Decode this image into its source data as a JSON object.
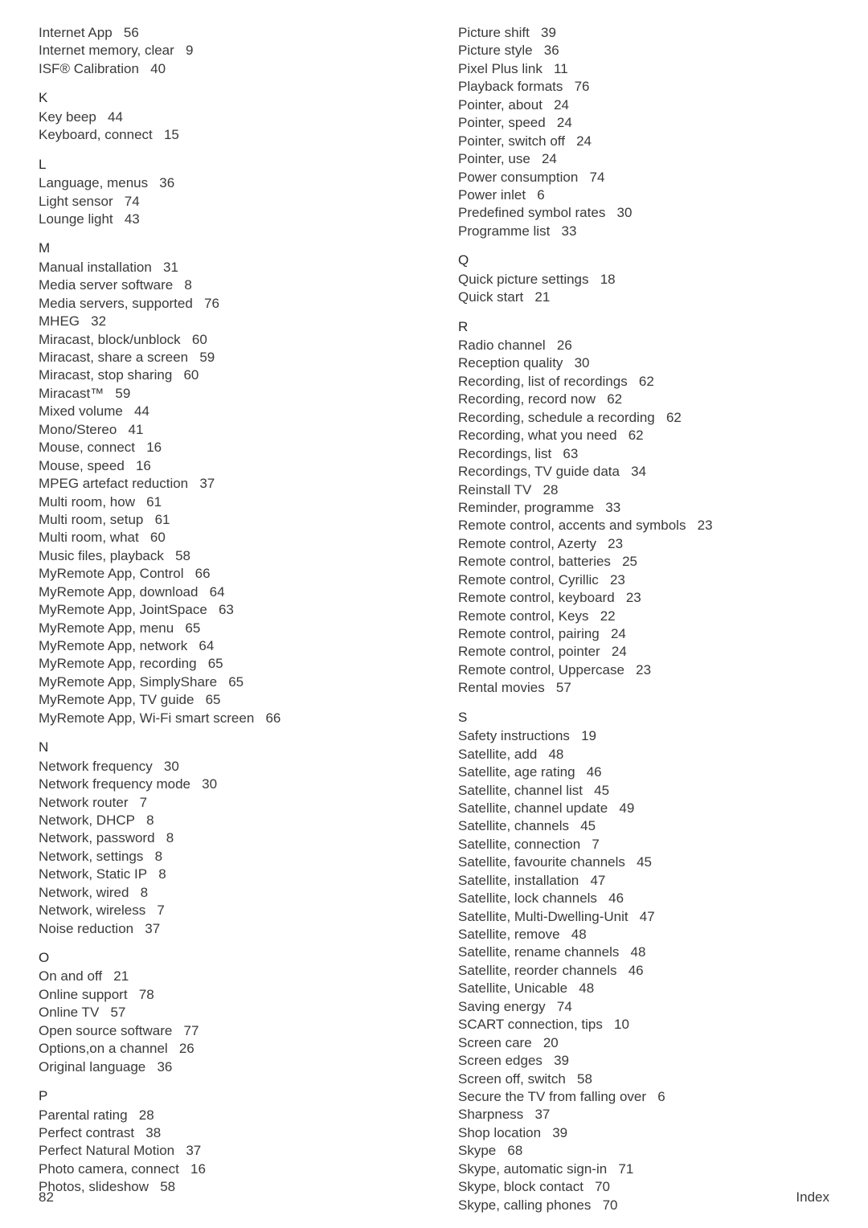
{
  "left": [
    {
      "type": "entry",
      "term": "Internet App",
      "page": "56"
    },
    {
      "type": "entry",
      "term": "Internet memory, clear",
      "page": "9"
    },
    {
      "type": "entry",
      "term": "ISF® Calibration",
      "page": "40"
    },
    {
      "type": "head",
      "label": "K"
    },
    {
      "type": "entry",
      "term": "Key beep",
      "page": "44"
    },
    {
      "type": "entry",
      "term": "Keyboard, connect",
      "page": "15"
    },
    {
      "type": "head",
      "label": "L"
    },
    {
      "type": "entry",
      "term": "Language, menus",
      "page": "36"
    },
    {
      "type": "entry",
      "term": "Light sensor",
      "page": "74"
    },
    {
      "type": "entry",
      "term": "Lounge light",
      "page": "43"
    },
    {
      "type": "head",
      "label": "M"
    },
    {
      "type": "entry",
      "term": "Manual installation",
      "page": "31"
    },
    {
      "type": "entry",
      "term": "Media server software",
      "page": "8"
    },
    {
      "type": "entry",
      "term": "Media servers, supported",
      "page": "76"
    },
    {
      "type": "entry",
      "term": "MHEG",
      "page": "32"
    },
    {
      "type": "entry",
      "term": "Miracast, block/unblock",
      "page": "60"
    },
    {
      "type": "entry",
      "term": "Miracast, share a screen",
      "page": "59"
    },
    {
      "type": "entry",
      "term": "Miracast, stop sharing",
      "page": "60"
    },
    {
      "type": "entry",
      "term": "Miracast™",
      "page": "59"
    },
    {
      "type": "entry",
      "term": "Mixed volume",
      "page": "44"
    },
    {
      "type": "entry",
      "term": "Mono/Stereo",
      "page": "41"
    },
    {
      "type": "entry",
      "term": "Mouse, connect",
      "page": "16"
    },
    {
      "type": "entry",
      "term": "Mouse, speed",
      "page": "16"
    },
    {
      "type": "entry",
      "term": "MPEG artefact reduction",
      "page": "37"
    },
    {
      "type": "entry",
      "term": "Multi room, how",
      "page": "61"
    },
    {
      "type": "entry",
      "term": "Multi room, setup",
      "page": "61"
    },
    {
      "type": "entry",
      "term": "Multi room, what",
      "page": "60"
    },
    {
      "type": "entry",
      "term": "Music files, playback",
      "page": "58"
    },
    {
      "type": "entry",
      "term": "MyRemote App, Control",
      "page": "66"
    },
    {
      "type": "entry",
      "term": "MyRemote App, download",
      "page": "64"
    },
    {
      "type": "entry",
      "term": "MyRemote App, JointSpace",
      "page": "63"
    },
    {
      "type": "entry",
      "term": "MyRemote App, menu",
      "page": "65"
    },
    {
      "type": "entry",
      "term": "MyRemote App, network",
      "page": "64"
    },
    {
      "type": "entry",
      "term": "MyRemote App, recording",
      "page": "65"
    },
    {
      "type": "entry",
      "term": "MyRemote App, SimplyShare",
      "page": "65"
    },
    {
      "type": "entry",
      "term": "MyRemote App, TV guide",
      "page": "65"
    },
    {
      "type": "entry",
      "term": "MyRemote App, Wi-Fi smart screen",
      "page": "66"
    },
    {
      "type": "head",
      "label": "N"
    },
    {
      "type": "entry",
      "term": "Network frequency",
      "page": "30"
    },
    {
      "type": "entry",
      "term": "Network frequency mode",
      "page": "30"
    },
    {
      "type": "entry",
      "term": "Network router",
      "page": "7"
    },
    {
      "type": "entry",
      "term": "Network, DHCP",
      "page": "8"
    },
    {
      "type": "entry",
      "term": "Network, password",
      "page": "8"
    },
    {
      "type": "entry",
      "term": "Network, settings",
      "page": "8"
    },
    {
      "type": "entry",
      "term": "Network, Static IP",
      "page": "8"
    },
    {
      "type": "entry",
      "term": "Network, wired",
      "page": "8"
    },
    {
      "type": "entry",
      "term": "Network, wireless",
      "page": "7"
    },
    {
      "type": "entry",
      "term": "Noise reduction",
      "page": "37"
    },
    {
      "type": "head",
      "label": "O"
    },
    {
      "type": "entry",
      "term": "On and off",
      "page": "21"
    },
    {
      "type": "entry",
      "term": "Online support",
      "page": "78"
    },
    {
      "type": "entry",
      "term": "Online TV",
      "page": "57"
    },
    {
      "type": "entry",
      "term": "Open source software",
      "page": "77"
    },
    {
      "type": "entry",
      "term": "Options,on a channel",
      "page": "26"
    },
    {
      "type": "entry",
      "term": "Original language",
      "page": "36"
    },
    {
      "type": "head",
      "label": "P"
    },
    {
      "type": "entry",
      "term": "Parental rating",
      "page": "28"
    },
    {
      "type": "entry",
      "term": "Perfect contrast",
      "page": "38"
    },
    {
      "type": "entry",
      "term": "Perfect Natural Motion",
      "page": "37"
    },
    {
      "type": "entry",
      "term": "Photo camera, connect",
      "page": "16"
    },
    {
      "type": "entry",
      "term": "Photos, slideshow",
      "page": "58"
    }
  ],
  "right": [
    {
      "type": "entry",
      "term": "Picture shift",
      "page": "39"
    },
    {
      "type": "entry",
      "term": "Picture style",
      "page": "36"
    },
    {
      "type": "entry",
      "term": "Pixel Plus link",
      "page": "11"
    },
    {
      "type": "entry",
      "term": "Playback formats",
      "page": "76"
    },
    {
      "type": "entry",
      "term": "Pointer, about",
      "page": "24"
    },
    {
      "type": "entry",
      "term": "Pointer, speed",
      "page": "24"
    },
    {
      "type": "entry",
      "term": "Pointer, switch off",
      "page": "24"
    },
    {
      "type": "entry",
      "term": "Pointer, use",
      "page": "24"
    },
    {
      "type": "entry",
      "term": "Power consumption",
      "page": "74"
    },
    {
      "type": "entry",
      "term": "Power inlet",
      "page": "6"
    },
    {
      "type": "entry",
      "term": "Predefined symbol rates",
      "page": "30"
    },
    {
      "type": "entry",
      "term": "Programme list",
      "page": "33"
    },
    {
      "type": "head",
      "label": "Q"
    },
    {
      "type": "entry",
      "term": "Quick picture settings",
      "page": "18"
    },
    {
      "type": "entry",
      "term": "Quick start",
      "page": "21"
    },
    {
      "type": "head",
      "label": "R"
    },
    {
      "type": "entry",
      "term": "Radio channel",
      "page": "26"
    },
    {
      "type": "entry",
      "term": "Reception quality",
      "page": "30"
    },
    {
      "type": "entry",
      "term": "Recording, list of recordings",
      "page": "62"
    },
    {
      "type": "entry",
      "term": "Recording, record now",
      "page": "62"
    },
    {
      "type": "entry",
      "term": "Recording, schedule a recording",
      "page": "62"
    },
    {
      "type": "entry",
      "term": "Recording, what you need",
      "page": "62"
    },
    {
      "type": "entry",
      "term": "Recordings, list",
      "page": "63"
    },
    {
      "type": "entry",
      "term": "Recordings, TV guide data",
      "page": "34"
    },
    {
      "type": "entry",
      "term": "Reinstall TV",
      "page": "28"
    },
    {
      "type": "entry",
      "term": "Reminder, programme",
      "page": "33"
    },
    {
      "type": "entry",
      "term": "Remote control, accents and symbols",
      "page": "23"
    },
    {
      "type": "entry",
      "term": "Remote control, Azerty",
      "page": "23"
    },
    {
      "type": "entry",
      "term": "Remote control, batteries",
      "page": "25"
    },
    {
      "type": "entry",
      "term": "Remote control, Cyrillic",
      "page": "23"
    },
    {
      "type": "entry",
      "term": "Remote control, keyboard",
      "page": "23"
    },
    {
      "type": "entry",
      "term": "Remote control, Keys",
      "page": "22"
    },
    {
      "type": "entry",
      "term": "Remote control, pairing",
      "page": "24"
    },
    {
      "type": "entry",
      "term": "Remote control, pointer",
      "page": "24"
    },
    {
      "type": "entry",
      "term": "Remote control, Uppercase",
      "page": "23"
    },
    {
      "type": "entry",
      "term": "Rental movies",
      "page": "57"
    },
    {
      "type": "head",
      "label": "S"
    },
    {
      "type": "entry",
      "term": "Safety instructions",
      "page": "19"
    },
    {
      "type": "entry",
      "term": "Satellite, add",
      "page": "48"
    },
    {
      "type": "entry",
      "term": "Satellite, age rating",
      "page": "46"
    },
    {
      "type": "entry",
      "term": "Satellite, channel list",
      "page": "45"
    },
    {
      "type": "entry",
      "term": "Satellite, channel update",
      "page": "49"
    },
    {
      "type": "entry",
      "term": "Satellite, channels",
      "page": "45"
    },
    {
      "type": "entry",
      "term": "Satellite, connection",
      "page": "7"
    },
    {
      "type": "entry",
      "term": "Satellite, favourite channels",
      "page": "45"
    },
    {
      "type": "entry",
      "term": "Satellite, installation",
      "page": "47"
    },
    {
      "type": "entry",
      "term": "Satellite, lock channels",
      "page": "46"
    },
    {
      "type": "entry",
      "term": "Satellite, Multi-Dwelling-Unit",
      "page": "47"
    },
    {
      "type": "entry",
      "term": "Satellite, remove",
      "page": "48"
    },
    {
      "type": "entry",
      "term": "Satellite, rename channels",
      "page": "48"
    },
    {
      "type": "entry",
      "term": "Satellite, reorder channels",
      "page": "46"
    },
    {
      "type": "entry",
      "term": "Satellite, Unicable",
      "page": "48"
    },
    {
      "type": "entry",
      "term": "Saving energy",
      "page": "74"
    },
    {
      "type": "entry",
      "term": "SCART connection, tips",
      "page": "10"
    },
    {
      "type": "entry",
      "term": "Screen care",
      "page": "20"
    },
    {
      "type": "entry",
      "term": "Screen edges",
      "page": "39"
    },
    {
      "type": "entry",
      "term": "Screen off, switch",
      "page": "58"
    },
    {
      "type": "entry",
      "term": "Secure the TV from falling over",
      "page": "6"
    },
    {
      "type": "entry",
      "term": "Sharpness",
      "page": "37"
    },
    {
      "type": "entry",
      "term": "Shop location",
      "page": "39"
    },
    {
      "type": "entry",
      "term": "Skype",
      "page": "68"
    },
    {
      "type": "entry",
      "term": "Skype, automatic sign-in",
      "page": "71"
    },
    {
      "type": "entry",
      "term": "Skype, block contact",
      "page": "70"
    },
    {
      "type": "entry",
      "term": "Skype, calling phones",
      "page": "70"
    }
  ],
  "footer": {
    "page_number": "82",
    "section": "Index"
  }
}
